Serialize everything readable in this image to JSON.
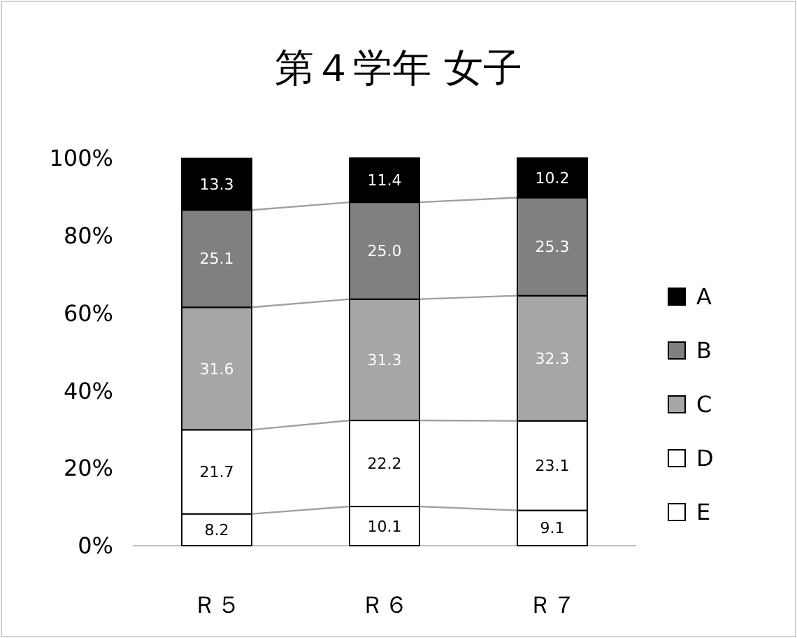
{
  "chart_data": {
    "type": "bar",
    "title": "第４学年 女子",
    "stacked": true,
    "categories": [
      "Ｒ５",
      "Ｒ６",
      "Ｒ７"
    ],
    "series": [
      {
        "name": "E",
        "color": "#ffffff",
        "values": [
          8.2,
          10.1,
          9.1
        ],
        "value_labels": [
          "8.2",
          "10.1",
          "9.1"
        ]
      },
      {
        "name": "D",
        "color": "#ffffff",
        "values": [
          21.7,
          22.2,
          23.1
        ],
        "value_labels": [
          "21.7",
          "22.2",
          "23.1"
        ]
      },
      {
        "name": "C",
        "color": "#a6a6a6",
        "values": [
          31.6,
          31.3,
          32.3
        ],
        "value_labels": [
          "31.6",
          "31.3",
          "32.3"
        ]
      },
      {
        "name": "B",
        "color": "#808080",
        "values": [
          25.1,
          25.0,
          25.3
        ],
        "value_labels": [
          "25.1",
          "25.0",
          "25.3"
        ]
      },
      {
        "name": "A",
        "color": "#000000",
        "values": [
          13.3,
          11.4,
          10.2
        ],
        "value_labels": [
          "13.3",
          "11.4",
          "10.2"
        ]
      }
    ],
    "ylim": [
      0,
      100
    ],
    "yticks": [
      {
        "value": 0,
        "label": "0%"
      },
      {
        "value": 20,
        "label": "20%"
      },
      {
        "value": 40,
        "label": "40%"
      },
      {
        "value": 60,
        "label": "60%"
      },
      {
        "value": 80,
        "label": "80%"
      },
      {
        "value": 100,
        "label": "100%"
      }
    ],
    "grid": false,
    "legend": "right"
  }
}
